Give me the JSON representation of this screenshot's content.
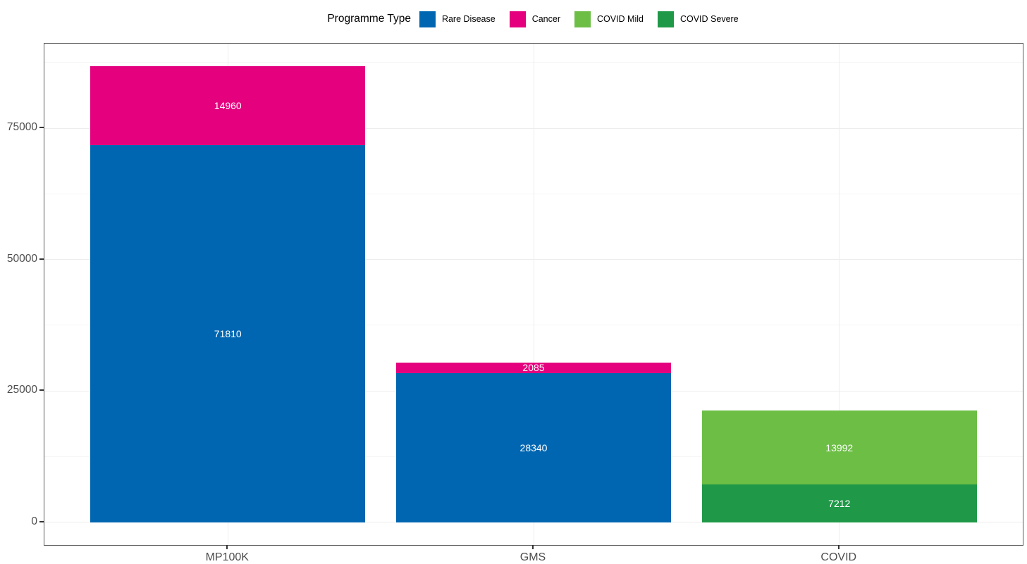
{
  "legend": {
    "title": "Programme Type",
    "items": [
      {
        "label": "Rare Disease",
        "color": "#0066B2"
      },
      {
        "label": "Cancer",
        "color": "#E5007E"
      },
      {
        "label": "COVID Mild",
        "color": "#6CBE45"
      },
      {
        "label": "COVID Severe",
        "color": "#1F9948"
      }
    ]
  },
  "chart_data": {
    "type": "bar",
    "stacked": true,
    "title": "",
    "xlabel": "",
    "ylabel": "",
    "legend_title": "Programme Type",
    "legend_position": "top-center",
    "grid": true,
    "categories": [
      "MP100K",
      "GMS",
      "COVID"
    ],
    "series": [
      {
        "name": "Rare Disease",
        "color": "#0066B2",
        "values": [
          71810,
          28340,
          null
        ]
      },
      {
        "name": "Cancer",
        "color": "#E5007E",
        "values": [
          14960,
          2085,
          null
        ]
      },
      {
        "name": "COVID Mild",
        "color": "#6CBE45",
        "values": [
          null,
          null,
          13992
        ]
      },
      {
        "name": "COVID Severe",
        "color": "#1F9948",
        "values": [
          null,
          null,
          7212
        ]
      }
    ],
    "stacks": [
      {
        "category": "MP100K",
        "total": 86770,
        "segments": [
          {
            "series": "Rare Disease",
            "value": 71810,
            "label": "71810"
          },
          {
            "series": "Cancer",
            "value": 14960,
            "label": "14960"
          }
        ]
      },
      {
        "category": "GMS",
        "total": 30425,
        "segments": [
          {
            "series": "Rare Disease",
            "value": 28340,
            "label": "28340"
          },
          {
            "series": "Cancer",
            "value": 2085,
            "label": "2085"
          }
        ]
      },
      {
        "category": "COVID",
        "total": 21204,
        "segments": [
          {
            "series": "COVID Severe",
            "value": 7212,
            "label": "7212"
          },
          {
            "series": "COVID Mild",
            "value": 13992,
            "label": "13992"
          }
        ]
      }
    ],
    "y_ticks": [
      0,
      25000,
      50000,
      75000
    ],
    "y_tick_labels": [
      "0",
      "25000",
      "50000",
      "75000"
    ],
    "y_minor_ticks": [
      12500,
      37500,
      62500,
      87500
    ],
    "ylim": [
      -4339,
      91109
    ],
    "bar_label_color": "#FFFFFF"
  },
  "style_colors": {
    "grid_major": "#EDEDED",
    "grid_minor": "#F6F6F6",
    "panel_border": "#595959",
    "axis_text": "#4D4D4D",
    "tick_mark": "#333333",
    "background": "#FFFFFF"
  }
}
